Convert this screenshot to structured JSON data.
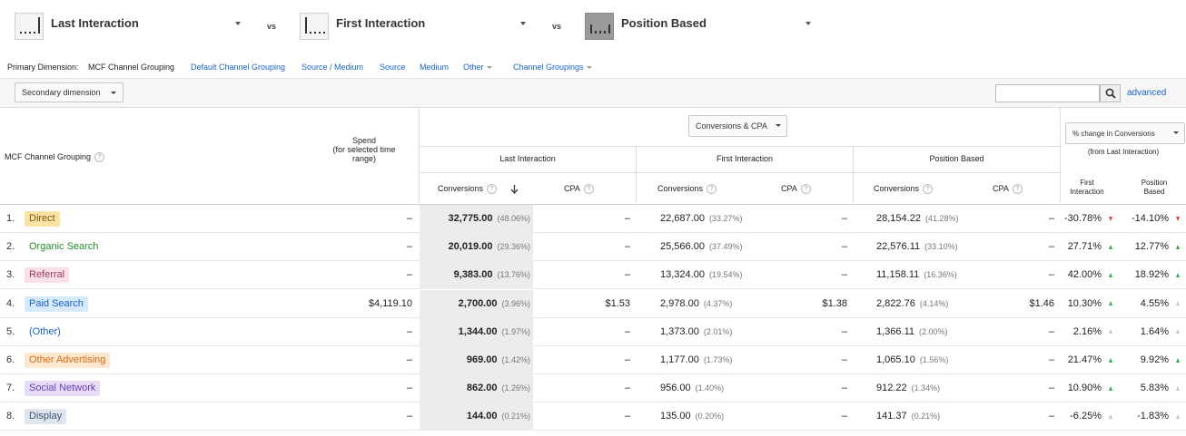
{
  "models": [
    {
      "label": "Last Interaction"
    },
    {
      "label": "First Interaction"
    },
    {
      "label": "Position Based"
    }
  ],
  "vs_label": "vs",
  "primary_dimension": {
    "label": "Primary Dimension:",
    "current": "MCF Channel Grouping",
    "links": [
      "Default Channel Grouping",
      "Source / Medium",
      "Source",
      "Medium",
      "Other",
      "Channel Groupings"
    ]
  },
  "toolbar": {
    "secondary_dimension": "Secondary dimension",
    "search_value": "",
    "advanced": "advanced"
  },
  "headers": {
    "channel": "MCF Channel Grouping",
    "help": "?",
    "spend_line1": "Spend",
    "spend_line2": "(for selected time",
    "spend_line3": "range)",
    "metric_select": "Conversions & CPA",
    "change_select": "% change in Conversions",
    "change_sub": "(from Last Interaction)",
    "groups": [
      "Last Interaction",
      "First Interaction",
      "Position Based"
    ],
    "conversions": "Conversions",
    "cpa": "CPA",
    "change_first_1": "First",
    "change_first_2": "Interaction",
    "change_pos_1": "Position",
    "change_pos_2": "Based"
  },
  "rows": [
    {
      "idx": "1.",
      "channel": "Direct",
      "color": "#fbe3a6",
      "text_color": "#7a5a0a",
      "spend": "–",
      "li_conv": "32,775.00",
      "li_pct": "(48.06%)",
      "li_cpa": "–",
      "fi_conv": "22,687.00",
      "fi_pct": "(33.27%)",
      "fi_cpa": "–",
      "pb_conv": "28,154.22",
      "pb_pct": "(41.28%)",
      "pb_cpa": "–",
      "ch_first": "-30.78%",
      "ch_first_dir": "down",
      "ch_pos": "-14.10%",
      "ch_pos_dir": "down"
    },
    {
      "idx": "2.",
      "channel": "Organic Search",
      "color": "#ffffff",
      "text_color": "#2c8a2c",
      "spend": "–",
      "li_conv": "20,019.00",
      "li_pct": "(29.36%)",
      "li_cpa": "–",
      "fi_conv": "25,566.00",
      "fi_pct": "(37.49%)",
      "fi_cpa": "–",
      "pb_conv": "22,576.11",
      "pb_pct": "(33.10%)",
      "pb_cpa": "–",
      "ch_first": "27.71%",
      "ch_first_dir": "up",
      "ch_pos": "12.77%",
      "ch_pos_dir": "up"
    },
    {
      "idx": "3.",
      "channel": "Referral",
      "color": "#fbe0ea",
      "text_color": "#9a3b5c",
      "spend": "–",
      "li_conv": "9,383.00",
      "li_pct": "(13.76%)",
      "li_cpa": "–",
      "fi_conv": "13,324.00",
      "fi_pct": "(19.54%)",
      "fi_cpa": "–",
      "pb_conv": "11,158.11",
      "pb_pct": "(16.36%)",
      "pb_cpa": "–",
      "ch_first": "42.00%",
      "ch_first_dir": "up",
      "ch_pos": "18.92%",
      "ch_pos_dir": "up"
    },
    {
      "idx": "4.",
      "channel": "Paid Search",
      "color": "#d6eafb",
      "text_color": "#1a62c3",
      "spend": "$4,119.10",
      "li_conv": "2,700.00",
      "li_pct": "(3.96%)",
      "li_cpa": "$1.53",
      "fi_conv": "2,978.00",
      "fi_pct": "(4.37%)",
      "fi_cpa": "$1.38",
      "pb_conv": "2,822.76",
      "pb_pct": "(4.14%)",
      "pb_cpa": "$1.46",
      "ch_first": "10.30%",
      "ch_first_dir": "up",
      "ch_pos": "4.55%",
      "ch_pos_dir": "gray"
    },
    {
      "idx": "5.",
      "channel": "(Other)",
      "color": "#ffffff",
      "text_color": "#1a62c3",
      "spend": "–",
      "li_conv": "1,344.00",
      "li_pct": "(1.97%)",
      "li_cpa": "–",
      "fi_conv": "1,373.00",
      "fi_pct": "(2.01%)",
      "fi_cpa": "–",
      "pb_conv": "1,366.11",
      "pb_pct": "(2.00%)",
      "pb_cpa": "–",
      "ch_first": "2.16%",
      "ch_first_dir": "gray",
      "ch_pos": "1.64%",
      "ch_pos_dir": "gray"
    },
    {
      "idx": "6.",
      "channel": "Other Advertising",
      "color": "#fde7d0",
      "text_color": "#d86a12",
      "spend": "–",
      "li_conv": "969.00",
      "li_pct": "(1.42%)",
      "li_cpa": "–",
      "fi_conv": "1,177.00",
      "fi_pct": "(1.73%)",
      "fi_cpa": "–",
      "pb_conv": "1,065.10",
      "pb_pct": "(1.56%)",
      "pb_cpa": "–",
      "ch_first": "21.47%",
      "ch_first_dir": "up",
      "ch_pos": "9.92%",
      "ch_pos_dir": "up"
    },
    {
      "idx": "7.",
      "channel": "Social Network",
      "color": "#e6dcf6",
      "text_color": "#6a3fb5",
      "spend": "–",
      "li_conv": "862.00",
      "li_pct": "(1.26%)",
      "li_cpa": "–",
      "fi_conv": "956.00",
      "fi_pct": "(1.40%)",
      "fi_cpa": "–",
      "pb_conv": "912.22",
      "pb_pct": "(1.34%)",
      "pb_cpa": "–",
      "ch_first": "10.90%",
      "ch_first_dir": "up",
      "ch_pos": "5.83%",
      "ch_pos_dir": "gray"
    },
    {
      "idx": "8.",
      "channel": "Display",
      "color": "#dfe6ee",
      "text_color": "#3b5470",
      "spend": "–",
      "li_conv": "144.00",
      "li_pct": "(0.21%)",
      "li_cpa": "–",
      "fi_conv": "135.00",
      "fi_pct": "(0.20%)",
      "fi_cpa": "–",
      "pb_conv": "141.37",
      "pb_pct": "(0.21%)",
      "pb_cpa": "–",
      "ch_first": "-6.25%",
      "ch_first_dir": "gray",
      "ch_pos": "-1.83%",
      "ch_pos_dir": "gray"
    }
  ]
}
